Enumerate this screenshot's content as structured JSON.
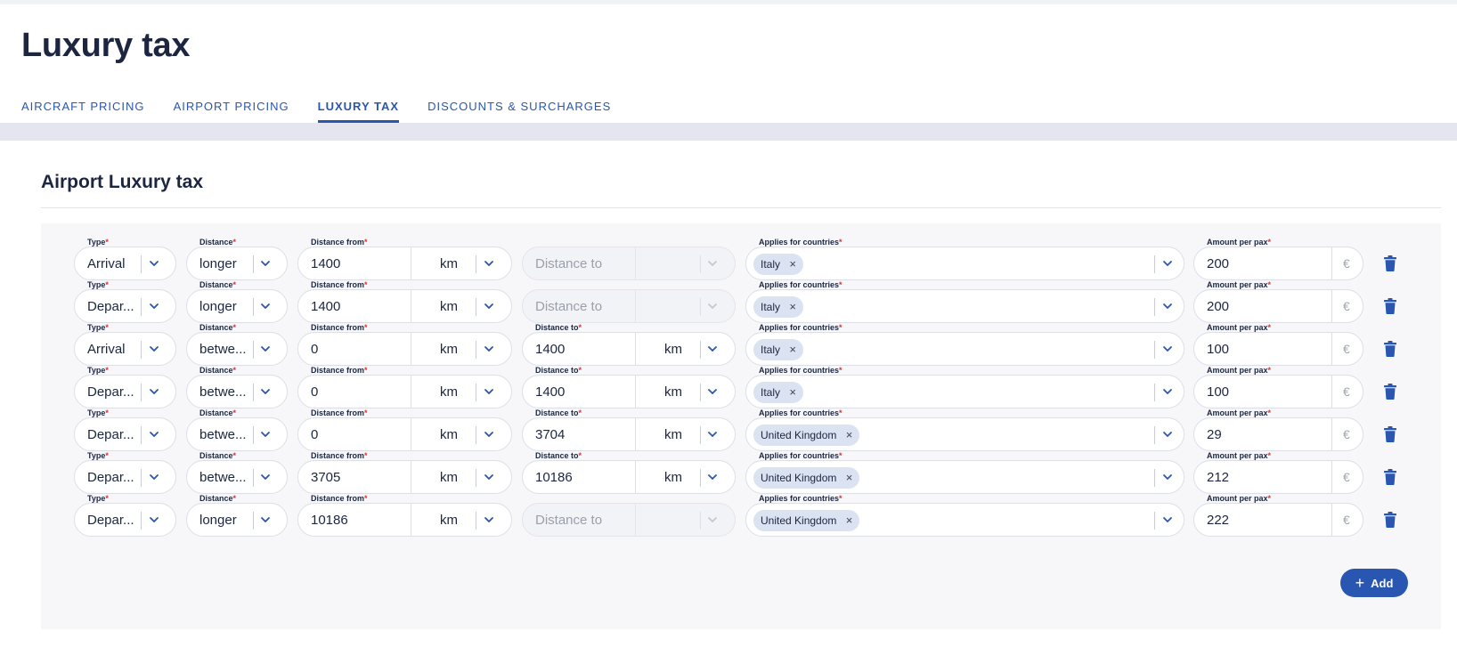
{
  "page": {
    "title": "Luxury tax"
  },
  "tabs": [
    {
      "label": "AIRCRAFT PRICING",
      "active": false
    },
    {
      "label": "AIRPORT PRICING",
      "active": false
    },
    {
      "label": "LUXURY TAX",
      "active": true
    },
    {
      "label": "DISCOUNTS & SURCHARGES",
      "active": false
    }
  ],
  "section": {
    "title": "Airport Luxury tax"
  },
  "labels": {
    "type": "Type",
    "distance": "Distance",
    "distance_from": "Distance from",
    "distance_to": "Distance to",
    "applies_for_countries": "Applies for countries",
    "amount_per_pax": "Amount per pax",
    "required_marker": "*",
    "distance_to_placeholder": "Distance to",
    "unit_km": "km",
    "currency": "€",
    "chip_remove": "×"
  },
  "rows": [
    {
      "type": "Arrival",
      "distance": "longer",
      "distance_from": "1400",
      "distance_to": null,
      "country": "Italy",
      "amount": "200"
    },
    {
      "type": "Depar...",
      "distance": "longer",
      "distance_from": "1400",
      "distance_to": null,
      "country": "Italy",
      "amount": "200"
    },
    {
      "type": "Arrival",
      "distance": "betwe...",
      "distance_from": "0",
      "distance_to": "1400",
      "country": "Italy",
      "amount": "100"
    },
    {
      "type": "Depar...",
      "distance": "betwe...",
      "distance_from": "0",
      "distance_to": "1400",
      "country": "Italy",
      "amount": "100"
    },
    {
      "type": "Depar...",
      "distance": "betwe...",
      "distance_from": "0",
      "distance_to": "3704",
      "country": "United Kingdom",
      "amount": "29"
    },
    {
      "type": "Depar...",
      "distance": "betwe...",
      "distance_from": "3705",
      "distance_to": "10186",
      "country": "United Kingdom",
      "amount": "212"
    },
    {
      "type": "Depar...",
      "distance": "longer",
      "distance_from": "10186",
      "distance_to": null,
      "country": "United Kingdom",
      "amount": "222"
    }
  ],
  "actions": {
    "add_label": "Add",
    "add_icon": "plus-icon",
    "delete_icon": "trash-icon"
  },
  "colors": {
    "accent": "#2856b0",
    "required": "#e0312b",
    "chip_bg": "#dbe3f2",
    "panel_bg": "#f7f7fa"
  }
}
